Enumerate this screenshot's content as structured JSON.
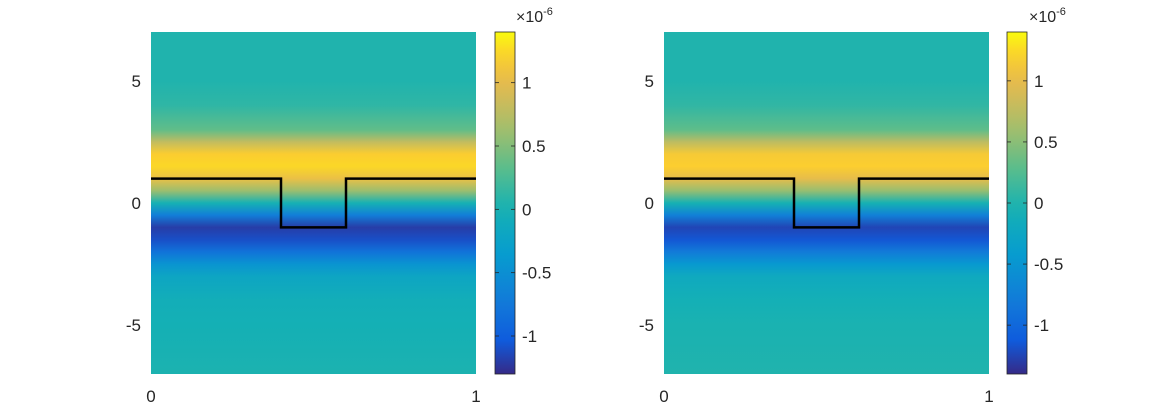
{
  "chart_data": [
    {
      "type": "heatmap",
      "title": "",
      "xlabel": "",
      "ylabel": "",
      "xlim": [
        0,
        1
      ],
      "ylim": [
        -7,
        7
      ],
      "xticks": [
        "0",
        "1"
      ],
      "yticks": [
        "5",
        "0",
        "-5"
      ],
      "ytick_values": [
        5,
        0,
        -5
      ],
      "field": {
        "description_rows": "value (×1e-6) as function of y, roughly uniform in x",
        "y": [
          7,
          5,
          4,
          3,
          2.5,
          2,
          1.5,
          1,
          0.5,
          0,
          -0.5,
          -1,
          -1.5,
          -2,
          -2.5,
          -3,
          -4,
          -5,
          -7
        ],
        "value": [
          0.05,
          0.05,
          0.12,
          0.35,
          0.8,
          1.2,
          1.25,
          1.05,
          0.6,
          0.0,
          -0.7,
          -1.2,
          -1.1,
          -0.8,
          -0.45,
          -0.2,
          -0.06,
          -0.02,
          0.03
        ]
      },
      "boundary_curve": {
        "x": [
          0,
          0.4,
          0.4,
          0.6,
          0.6,
          1
        ],
        "y": [
          1,
          1,
          -1,
          -1,
          1,
          1
        ],
        "color": "#000000"
      },
      "colorbar": {
        "range": [
          -1.3,
          1.4
        ],
        "ticks": [
          "1",
          "0.5",
          "0",
          "-0.5",
          "-1"
        ],
        "tick_values": [
          1,
          0.5,
          0,
          -0.5,
          -1
        ],
        "exponent_base": "×10",
        "exponent_power": "-6",
        "colormap": "parula"
      }
    },
    {
      "type": "heatmap",
      "title": "",
      "xlabel": "",
      "ylabel": "",
      "xlim": [
        0,
        1
      ],
      "ylim": [
        -7,
        7
      ],
      "xticks": [
        "0",
        "1"
      ],
      "yticks": [
        "5",
        "0",
        "-5"
      ],
      "ytick_values": [
        5,
        0,
        -5
      ],
      "field": {
        "description_rows": "value (×1e-6) as function of y, roughly uniform in x",
        "y": [
          7,
          5,
          4,
          3,
          2.5,
          2,
          1.5,
          1,
          0.5,
          0,
          -0.5,
          -1,
          -1.5,
          -2,
          -2.5,
          -3,
          -4,
          -5,
          -7
        ],
        "value": [
          0.0,
          0.0,
          0.08,
          0.3,
          0.75,
          1.15,
          1.2,
          1.0,
          0.55,
          -0.05,
          -0.75,
          -1.25,
          -1.15,
          -0.8,
          -0.45,
          -0.2,
          -0.08,
          -0.03,
          0.0
        ]
      },
      "boundary_curve": {
        "x": [
          0,
          0.4,
          0.4,
          0.6,
          0.6,
          1
        ],
        "y": [
          1,
          1,
          -1,
          -1,
          1,
          1
        ],
        "color": "#000000"
      },
      "colorbar": {
        "range": [
          -1.4,
          1.4
        ],
        "ticks": [
          "1",
          "0.5",
          "0",
          "-0.5",
          "-1"
        ],
        "tick_values": [
          1,
          0.5,
          0,
          -0.5,
          -1
        ],
        "exponent_base": "×10",
        "exponent_power": "-6",
        "colormap": "parula"
      }
    }
  ]
}
